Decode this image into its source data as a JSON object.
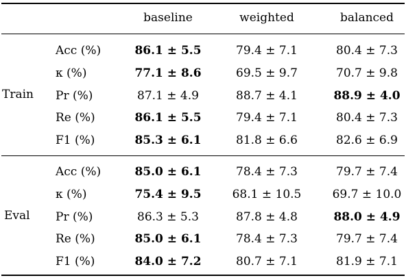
{
  "columns": [
    "baseline",
    "weighted",
    "balanced"
  ],
  "groups": [
    {
      "name": "Train",
      "rows": [
        {
          "metric": "Acc (%)",
          "values": [
            "86.1 ± 5.5",
            "79.4 ± 7.1",
            "80.4 ± 7.3"
          ],
          "bold": [
            true,
            false,
            false
          ]
        },
        {
          "metric": "κ (%)",
          "values": [
            "77.1 ± 8.6",
            "69.5 ± 9.7",
            "70.7 ± 9.8"
          ],
          "bold": [
            true,
            false,
            false
          ]
        },
        {
          "metric": "Pr (%)",
          "values": [
            "87.1 ± 4.9",
            "88.7 ± 4.1",
            "88.9 ± 4.0"
          ],
          "bold": [
            false,
            false,
            true
          ]
        },
        {
          "metric": "Re (%)",
          "values": [
            "86.1 ± 5.5",
            "79.4 ± 7.1",
            "80.4 ± 7.3"
          ],
          "bold": [
            true,
            false,
            false
          ]
        },
        {
          "metric": "F1 (%)",
          "values": [
            "85.3 ± 6.1",
            "81.8 ± 6.6",
            "82.6 ± 6.9"
          ],
          "bold": [
            true,
            false,
            false
          ]
        }
      ]
    },
    {
      "name": "Eval",
      "rows": [
        {
          "metric": "Acc (%)",
          "values": [
            "85.0 ± 6.1",
            "78.4 ± 7.3",
            "79.7 ± 7.4"
          ],
          "bold": [
            true,
            false,
            false
          ]
        },
        {
          "metric": "κ (%)",
          "values": [
            "75.4 ± 9.5",
            "68.1 ± 10.5",
            "69.7 ± 10.0"
          ],
          "bold": [
            true,
            false,
            false
          ]
        },
        {
          "metric": "Pr (%)",
          "values": [
            "86.3 ± 5.3",
            "87.8 ± 4.8",
            "88.0 ± 4.9"
          ],
          "bold": [
            false,
            false,
            true
          ]
        },
        {
          "metric": "Re (%)",
          "values": [
            "85.0 ± 6.1",
            "78.4 ± 7.3",
            "79.7 ± 7.4"
          ],
          "bold": [
            true,
            false,
            false
          ]
        },
        {
          "metric": "F1 (%)",
          "values": [
            "84.0 ± 7.2",
            "80.7 ± 7.1",
            "81.9 ± 7.1"
          ],
          "bold": [
            true,
            false,
            false
          ]
        }
      ]
    }
  ]
}
